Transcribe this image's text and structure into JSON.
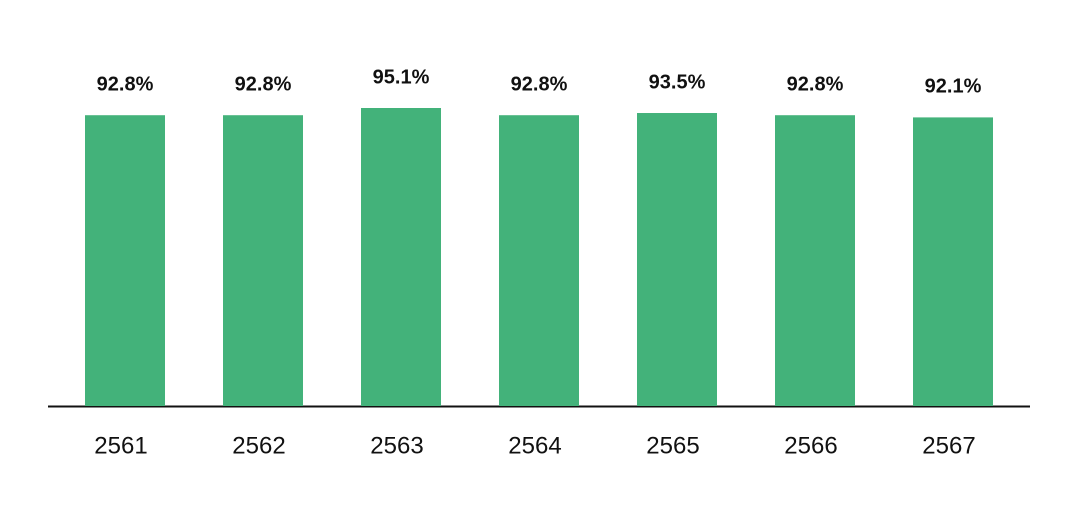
{
  "chart_data": {
    "type": "bar",
    "categories": [
      "2561",
      "2562",
      "2563",
      "2564",
      "2565",
      "2566",
      "2567"
    ],
    "values": [
      92.8,
      92.8,
      95.1,
      92.8,
      93.5,
      92.8,
      92.1
    ],
    "value_labels": [
      "92.8%",
      "92.8%",
      "95.1%",
      "92.8%",
      "93.5%",
      "92.8%",
      "92.1%"
    ],
    "color": "#43b27a"
  }
}
